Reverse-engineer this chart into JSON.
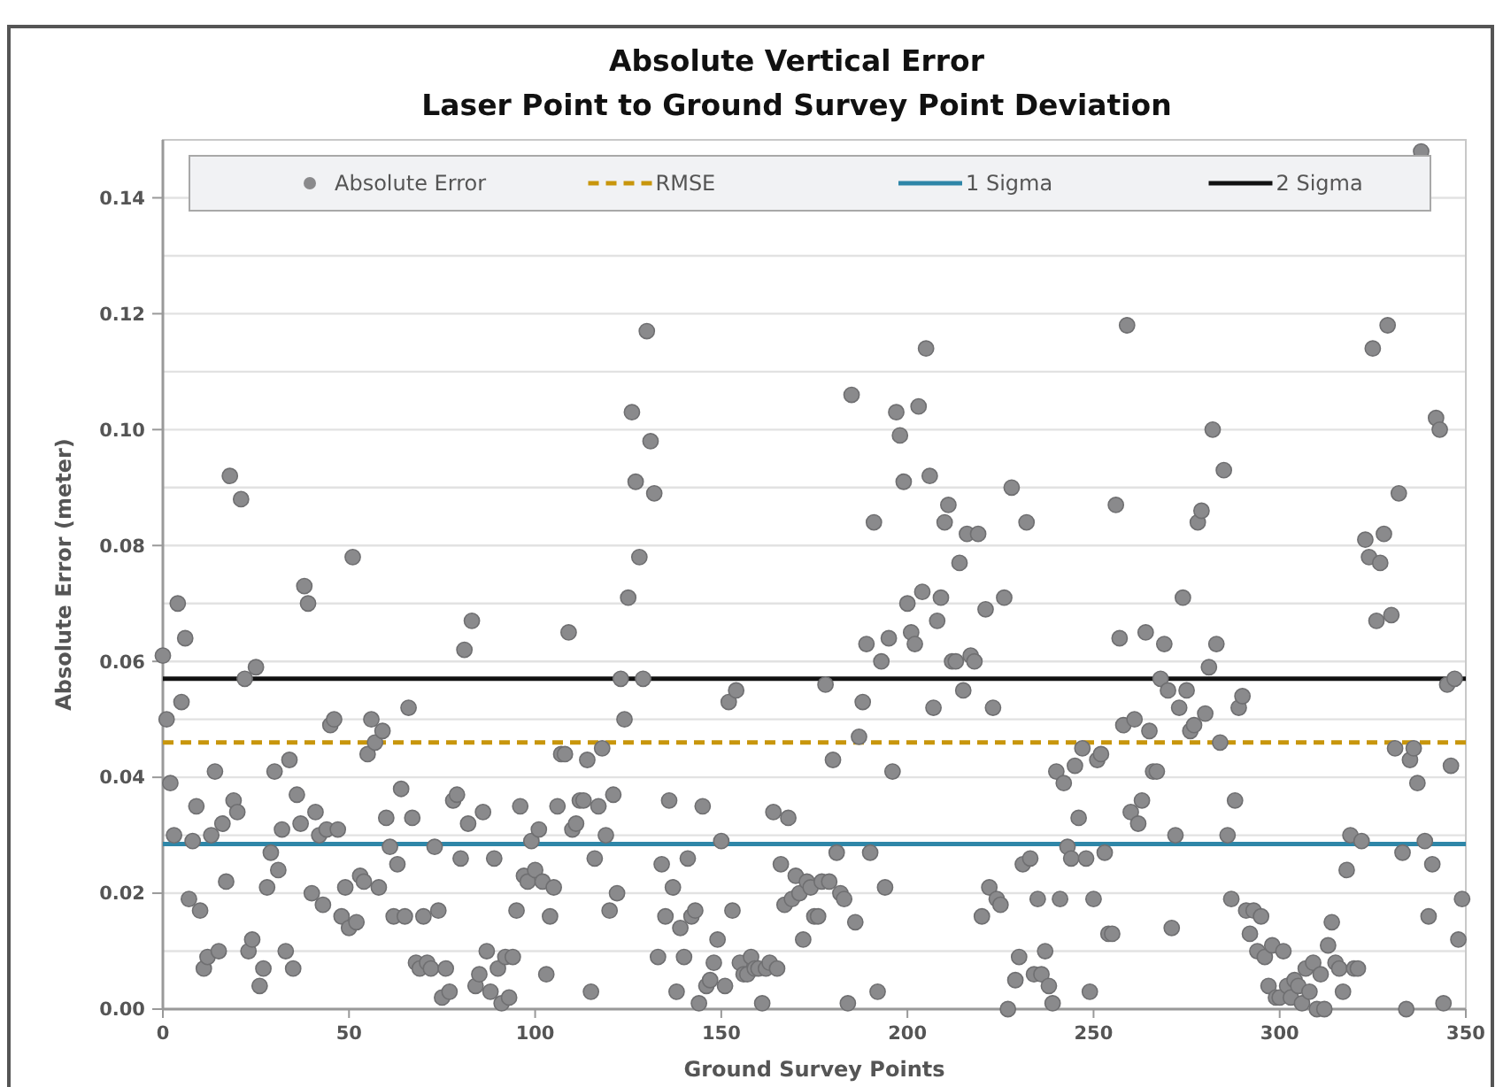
{
  "chart_data": {
    "type": "scatter",
    "title": "Absolute Vertical Error\nLaser Point to Ground Survey Point Deviation",
    "xlabel": "Ground Survey Points",
    "ylabel": "Absolute Error (meter)",
    "xlim": [
      0,
      350
    ],
    "ylim": [
      0,
      0.15
    ],
    "xticks": [
      0,
      50,
      100,
      150,
      200,
      250,
      300,
      350
    ],
    "yticks": [
      {
        "value": 0,
        "label": "0.00"
      },
      {
        "value": 0.01,
        "label": null
      },
      {
        "value": 0.02,
        "label": "0.02"
      },
      {
        "value": 0.03,
        "label": null
      },
      {
        "value": 0.04,
        "label": "0.04"
      },
      {
        "value": 0.05,
        "label": null
      },
      {
        "value": 0.06,
        "label": "0.06"
      },
      {
        "value": 0.07,
        "label": null
      },
      {
        "value": 0.08,
        "label": "0.08"
      },
      {
        "value": 0.09,
        "label": null
      },
      {
        "value": 0.1,
        "label": "0.10"
      },
      {
        "value": 0.11,
        "label": null
      },
      {
        "value": 0.12,
        "label": "0.12"
      },
      {
        "value": 0.13,
        "label": null
      },
      {
        "value": 0.14,
        "label": "0.14"
      }
    ],
    "grid": "y",
    "legend": "top",
    "marker": "circle",
    "series": [
      {
        "name": "Absolute Error",
        "color": "#8a8a8c",
        "x": [
          0,
          1,
          2,
          3,
          4,
          5,
          6,
          7,
          8,
          9,
          10,
          11,
          12,
          13,
          14,
          15,
          16,
          17,
          18,
          19,
          20,
          21,
          22,
          23,
          24,
          25,
          26,
          27,
          28,
          29,
          30,
          31,
          32,
          33,
          34,
          35,
          36,
          37,
          38,
          39,
          40,
          41,
          42,
          43,
          44,
          45,
          46,
          47,
          48,
          49,
          50,
          51,
          52,
          53,
          54,
          55,
          56,
          57,
          58,
          59,
          60,
          61,
          62,
          63,
          64,
          65,
          66,
          67,
          68,
          69,
          70,
          71,
          72,
          73,
          74,
          75,
          76,
          77,
          78,
          79,
          80,
          81,
          82,
          83,
          84,
          85,
          86,
          87,
          88,
          89,
          90,
          91,
          92,
          93,
          94,
          95,
          96,
          97,
          98,
          99,
          100,
          101,
          102,
          103,
          104,
          105,
          106,
          107,
          108,
          109,
          110,
          111,
          112,
          113,
          114,
          115,
          116,
          117,
          118,
          119,
          120,
          121,
          122,
          123,
          124,
          125,
          126,
          127,
          128,
          129,
          130,
          131,
          132,
          133,
          134,
          135,
          136,
          137,
          138,
          139,
          140,
          141,
          142,
          143,
          144,
          145,
          146,
          147,
          148,
          149,
          150,
          151,
          152,
          153,
          154,
          155,
          156,
          157,
          158,
          159,
          160,
          161,
          162,
          163,
          164,
          165,
          166,
          167,
          168,
          169,
          170,
          171,
          172,
          173,
          174,
          175,
          176,
          177,
          178,
          179,
          180,
          181,
          182,
          183,
          184,
          185,
          186,
          187,
          188,
          189,
          190,
          191,
          192,
          193,
          194,
          195,
          196,
          197,
          198,
          199,
          200,
          201,
          202,
          203,
          204,
          205,
          206,
          207,
          208,
          209,
          210,
          211,
          212,
          213,
          214,
          215,
          216,
          217,
          218,
          219,
          220,
          221,
          222,
          223,
          224,
          225,
          226,
          227,
          228,
          229,
          230,
          231,
          232,
          233,
          234,
          235,
          236,
          237,
          238,
          239,
          240,
          241,
          242,
          243,
          244,
          245,
          246,
          247,
          248,
          249,
          250,
          251,
          252,
          253,
          254,
          255,
          256,
          257,
          258,
          259,
          260,
          261,
          262,
          263,
          264,
          265,
          266,
          267,
          268,
          269,
          270,
          271,
          272,
          273,
          274,
          275,
          276,
          277,
          278,
          279,
          280,
          281,
          282,
          283,
          284,
          285,
          286,
          287,
          288,
          289,
          290,
          291,
          292,
          293,
          294,
          295,
          296,
          297,
          298,
          299,
          300,
          301,
          302,
          303,
          304,
          305,
          306,
          307,
          308,
          309,
          310,
          311,
          312,
          313,
          314,
          315,
          316,
          317,
          318,
          319,
          320,
          321,
          322,
          323,
          324,
          325,
          326,
          327,
          328,
          329,
          330,
          331,
          332,
          333,
          334,
          335,
          336,
          337,
          338,
          339,
          340,
          341,
          342,
          343,
          344,
          345,
          346,
          347,
          348,
          349
        ],
        "values": [
          0.061,
          0.05,
          0.039,
          0.03,
          0.07,
          0.053,
          0.064,
          0.019,
          0.029,
          0.035,
          0.017,
          0.007,
          0.009,
          0.03,
          0.041,
          0.01,
          0.032,
          0.022,
          0.092,
          0.036,
          0.034,
          0.088,
          0.057,
          0.01,
          0.012,
          0.059,
          0.004,
          0.007,
          0.021,
          0.027,
          0.041,
          0.024,
          0.031,
          0.01,
          0.043,
          0.007,
          0.037,
          0.032,
          0.073,
          0.07,
          0.02,
          0.034,
          0.03,
          0.018,
          0.031,
          0.049,
          0.05,
          0.031,
          0.016,
          0.021,
          0.014,
          0.078,
          0.015,
          0.023,
          0.022,
          0.044,
          0.05,
          0.046,
          0.021,
          0.048,
          0.033,
          0.028,
          0.016,
          0.025,
          0.038,
          0.016,
          0.052,
          0.033,
          0.008,
          0.007,
          0.016,
          0.008,
          0.007,
          0.028,
          0.017,
          0.002,
          0.007,
          0.003,
          0.036,
          0.037,
          0.026,
          0.062,
          0.032,
          0.067,
          0.004,
          0.006,
          0.034,
          0.01,
          0.003,
          0.026,
          0.007,
          0.001,
          0.009,
          0.002,
          0.009,
          0.017,
          0.035,
          0.023,
          0.022,
          0.029,
          0.024,
          0.031,
          0.022,
          0.006,
          0.016,
          0.021,
          0.035,
          0.044,
          0.044,
          0.065,
          0.031,
          0.032,
          0.036,
          0.036,
          0.043,
          0.003,
          0.026,
          0.035,
          0.045,
          0.03,
          0.017,
          0.037,
          0.02,
          0.057,
          0.05,
          0.071,
          0.103,
          0.091,
          0.078,
          0.057,
          0.117,
          0.098,
          0.089,
          0.009,
          0.025,
          0.016,
          0.036,
          0.021,
          0.003,
          0.014,
          0.009,
          0.026,
          0.016,
          0.017,
          0.001,
          0.035,
          0.004,
          0.005,
          0.008,
          0.012,
          0.029,
          0.004,
          0.053,
          0.017,
          0.055,
          0.008,
          0.006,
          0.006,
          0.009,
          0.007,
          0.007,
          0.001,
          0.007,
          0.008,
          0.034,
          0.007,
          0.025,
          0.018,
          0.033,
          0.019,
          0.023,
          0.02,
          0.012,
          0.022,
          0.021,
          0.016,
          0.016,
          0.022,
          0.056,
          0.022,
          0.043,
          0.027,
          0.02,
          0.019,
          0.001,
          0.106,
          0.015,
          0.047,
          0.053,
          0.063,
          0.027,
          0.084,
          0.003,
          0.06,
          0.021,
          0.064,
          0.041,
          0.103,
          0.099,
          0.091,
          0.07,
          0.065,
          0.063,
          0.104,
          0.072,
          0.114,
          0.092,
          0.052,
          0.067,
          0.071,
          0.084,
          0.087,
          0.06,
          0.06,
          0.077,
          0.055,
          0.082,
          0.061,
          0.06,
          0.082,
          0.016,
          0.069,
          0.021,
          0.052,
          0.019,
          0.018,
          0.071,
          0.0,
          0.09,
          0.005,
          0.009,
          0.025,
          0.084,
          0.026,
          0.006,
          0.019,
          0.006,
          0.01,
          0.004,
          0.001,
          0.041,
          0.019,
          0.039,
          0.028,
          0.026,
          0.042,
          0.033,
          0.045,
          0.026,
          0.003,
          0.019,
          0.043,
          0.044,
          0.027,
          0.013,
          0.013,
          0.087,
          0.064,
          0.049,
          0.118,
          0.034,
          0.05,
          0.032,
          0.036,
          0.065,
          0.048,
          0.041,
          0.041,
          0.057,
          0.063,
          0.055,
          0.014,
          0.03,
          0.052,
          0.071,
          0.055,
          0.048,
          0.049,
          0.084,
          0.086,
          0.051,
          0.059,
          0.1,
          0.063,
          0.046,
          0.093,
          0.03,
          0.019,
          0.036,
          0.052,
          0.054,
          0.017,
          0.013,
          0.017,
          0.01,
          0.016,
          0.009,
          0.004,
          0.011,
          0.002,
          0.002,
          0.01,
          0.004,
          0.002,
          0.005,
          0.004,
          0.001,
          0.007,
          0.003,
          0.008,
          0.0,
          0.006,
          0.0,
          0.011,
          0.015,
          0.008,
          0.007,
          0.003,
          0.024,
          0.03,
          0.007,
          0.007,
          0.029,
          0.081,
          0.078,
          0.114,
          0.067,
          0.077,
          0.082,
          0.118,
          0.068,
          0.045,
          0.089,
          0.027,
          0.0,
          0.043,
          0.045,
          0.039,
          0.148,
          0.029,
          0.016,
          0.025,
          0.102,
          0.1,
          0.001,
          0.056,
          0.042,
          0.057,
          0.012,
          0.019
        ]
      },
      {
        "name": "RMSE",
        "type": "line",
        "color": "#c8960c",
        "line_style": "dashed",
        "marker": "none",
        "x": [
          0,
          350
        ],
        "values": [
          0.046,
          0.046
        ]
      },
      {
        "name": "1 Sigma",
        "type": "line",
        "color": "#2e86a8",
        "line_style": "solid",
        "marker": "none",
        "x": [
          0,
          350
        ],
        "values": [
          0.0285,
          0.0285
        ]
      },
      {
        "name": "2 Sigma",
        "type": "line",
        "color": "#111111",
        "line_style": "solid",
        "marker": "none",
        "x": [
          0,
          350
        ],
        "values": [
          0.057,
          0.057
        ]
      }
    ]
  }
}
